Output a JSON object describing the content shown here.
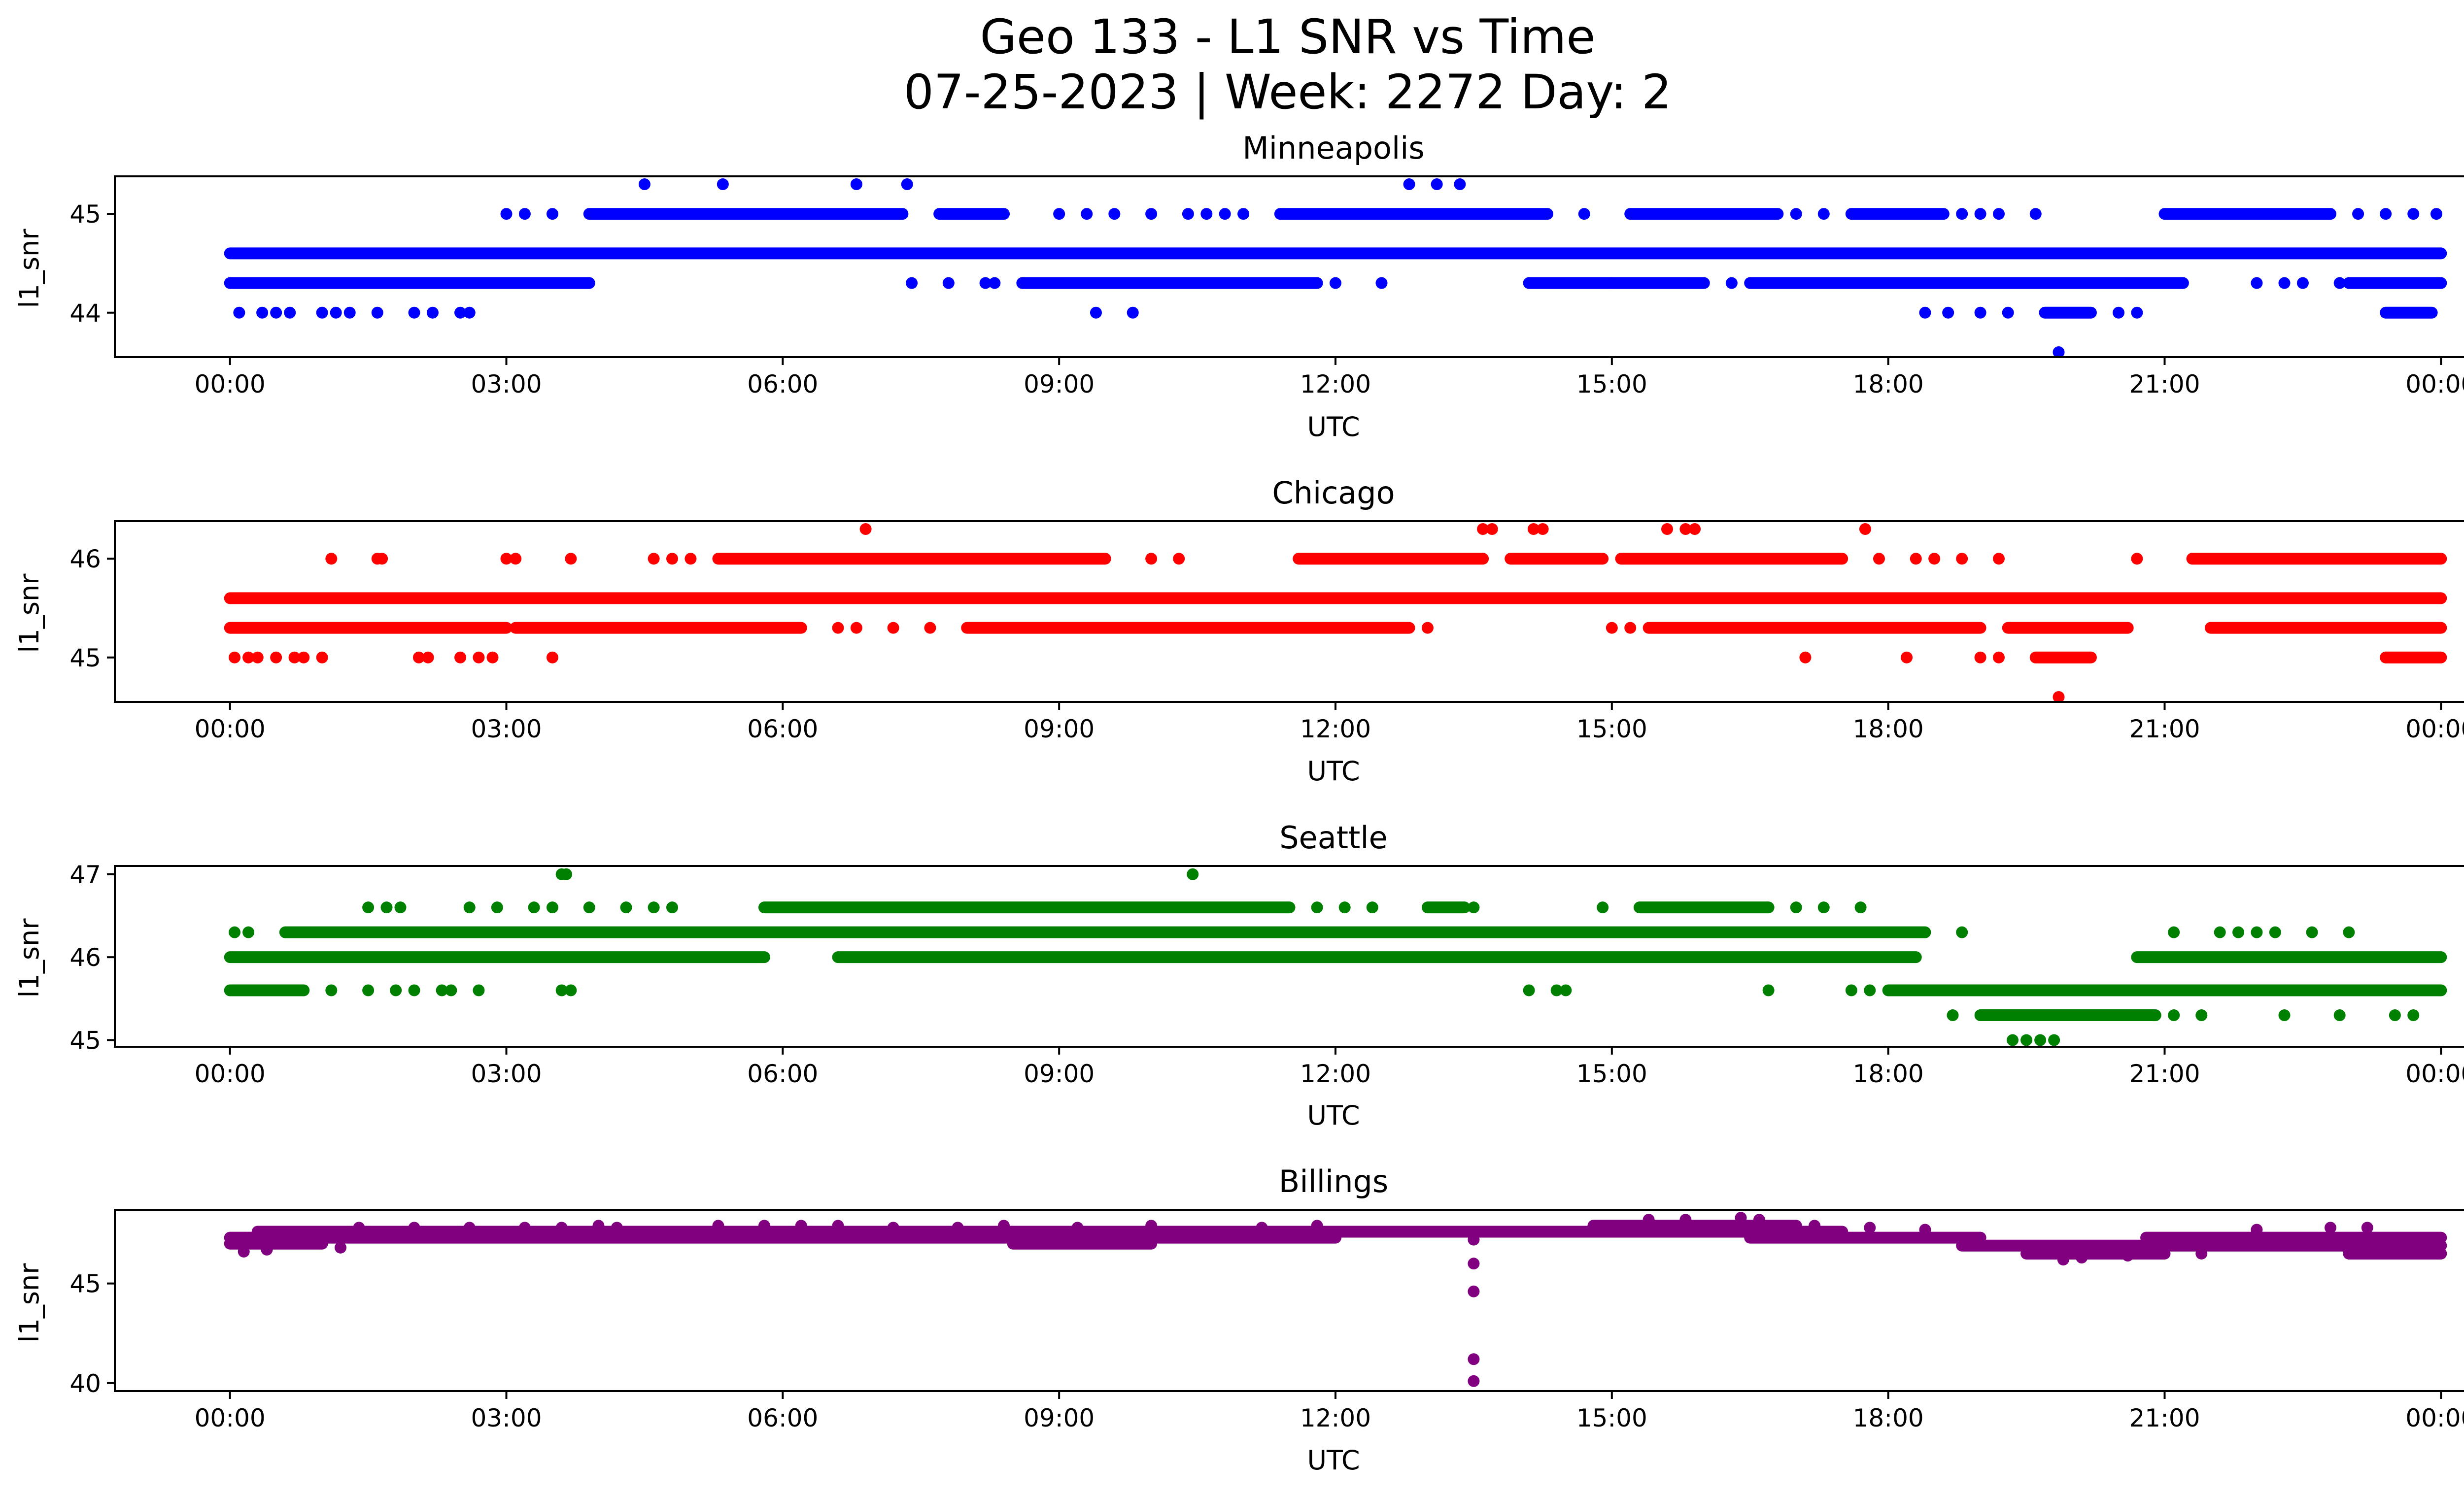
{
  "figure": {
    "title_line1": "Geo 133 - L1 SNR vs Time",
    "title_line2": "07-25-2023 | Week: 2272 Day: 2"
  },
  "chart_data": [
    {
      "type": "scatter",
      "title": "Minneapolis",
      "xlabel": "UTC",
      "ylabel": "l1_snr",
      "color": "#0000ff",
      "x_tick_labels": [
        "00:00",
        "03:00",
        "06:00",
        "09:00",
        "12:00",
        "15:00",
        "18:00",
        "21:00",
        "00:00"
      ],
      "x_range_hours": [
        -1.25,
        25.25
      ],
      "ylim": [
        43.55,
        45.38
      ],
      "y_ticks": [
        44,
        45
      ],
      "levels": [
        {
          "y": 44.6,
          "segments": [
            [
              0,
              24
            ]
          ]
        },
        {
          "y": 44.3,
          "segments": [
            [
              0,
              3.9
            ],
            [
              8.6,
              11.8
            ],
            [
              14.1,
              16.0
            ],
            [
              16.5,
              21.2
            ],
            [
              23.0,
              24
            ]
          ]
        },
        {
          "y": 45.0,
          "segments": [
            [
              3.9,
              7.3
            ],
            [
              7.7,
              8.4
            ],
            [
              11.4,
              14.3
            ],
            [
              15.2,
              16.8
            ],
            [
              17.6,
              18.6
            ],
            [
              21.0,
              22.8
            ]
          ]
        },
        {
          "y": 44.0,
          "segments": [
            [
              19.7,
              20.2
            ],
            [
              23.4,
              23.9
            ]
          ]
        }
      ],
      "points": [
        [
          0.1,
          44.0
        ],
        [
          0.35,
          44.0
        ],
        [
          0.5,
          44.0
        ],
        [
          0.65,
          44.0
        ],
        [
          1.0,
          44.0
        ],
        [
          1.15,
          44.0
        ],
        [
          1.3,
          44.0
        ],
        [
          1.6,
          44.0
        ],
        [
          2.0,
          44.0
        ],
        [
          2.2,
          44.0
        ],
        [
          2.5,
          44.0
        ],
        [
          2.6,
          44.0
        ],
        [
          3.0,
          45.0
        ],
        [
          3.2,
          45.0
        ],
        [
          3.5,
          45.0
        ],
        [
          4.5,
          45.3
        ],
        [
          5.35,
          45.3
        ],
        [
          6.8,
          45.3
        ],
        [
          7.35,
          45.3
        ],
        [
          7.4,
          44.3
        ],
        [
          7.8,
          44.3
        ],
        [
          8.2,
          44.3
        ],
        [
          8.3,
          44.3
        ],
        [
          9.0,
          45.0
        ],
        [
          9.3,
          45.0
        ],
        [
          9.6,
          45.0
        ],
        [
          10.0,
          45.0
        ],
        [
          10.4,
          45.0
        ],
        [
          10.6,
          45.0
        ],
        [
          10.8,
          45.0
        ],
        [
          11.0,
          45.0
        ],
        [
          9.4,
          44.0
        ],
        [
          9.8,
          44.0
        ],
        [
          12.0,
          44.3
        ],
        [
          12.5,
          44.3
        ],
        [
          12.8,
          45.3
        ],
        [
          13.1,
          45.3
        ],
        [
          13.35,
          45.3
        ],
        [
          14.7,
          45.0
        ],
        [
          15.0,
          44.3
        ],
        [
          16.3,
          44.3
        ],
        [
          17.0,
          45.0
        ],
        [
          17.3,
          45.0
        ],
        [
          18.4,
          44.0
        ],
        [
          18.65,
          44.0
        ],
        [
          19.0,
          44.0
        ],
        [
          19.3,
          44.0
        ],
        [
          18.8,
          45.0
        ],
        [
          19.0,
          45.0
        ],
        [
          19.2,
          45.0
        ],
        [
          19.6,
          45.0
        ],
        [
          19.85,
          43.6
        ],
        [
          20.5,
          44.0
        ],
        [
          20.7,
          44.0
        ],
        [
          22.0,
          44.3
        ],
        [
          22.3,
          44.3
        ],
        [
          22.5,
          44.3
        ],
        [
          22.9,
          44.3
        ],
        [
          23.1,
          45.0
        ],
        [
          23.4,
          45.0
        ],
        [
          23.7,
          45.0
        ],
        [
          23.95,
          45.0
        ]
      ]
    },
    {
      "type": "scatter",
      "title": "Chicago",
      "xlabel": "UTC",
      "ylabel": "l1_snr",
      "color": "#ff0000",
      "x_tick_labels": [
        "00:00",
        "03:00",
        "06:00",
        "09:00",
        "12:00",
        "15:00",
        "18:00",
        "21:00",
        "00:00"
      ],
      "x_range_hours": [
        -1.25,
        25.25
      ],
      "ylim": [
        44.55,
        46.38
      ],
      "y_ticks": [
        45,
        46
      ],
      "levels": [
        {
          "y": 45.6,
          "segments": [
            [
              0,
              24
            ]
          ]
        },
        {
          "y": 45.3,
          "segments": [
            [
              0,
              3.0
            ],
            [
              3.1,
              6.2
            ],
            [
              8.0,
              12.8
            ],
            [
              15.4,
              19.0
            ],
            [
              19.3,
              20.6
            ],
            [
              21.5,
              24
            ]
          ]
        },
        {
          "y": 46.0,
          "segments": [
            [
              5.3,
              9.5
            ],
            [
              11.6,
              13.6
            ],
            [
              13.9,
              14.9
            ],
            [
              15.1,
              17.5
            ],
            [
              21.3,
              24
            ]
          ]
        },
        {
          "y": 45.0,
          "segments": [
            [
              19.6,
              20.2
            ],
            [
              23.4,
              24
            ]
          ]
        }
      ],
      "points": [
        [
          0.05,
          45.0
        ],
        [
          0.2,
          45.0
        ],
        [
          0.3,
          45.0
        ],
        [
          0.5,
          45.0
        ],
        [
          0.7,
          45.0
        ],
        [
          0.8,
          45.0
        ],
        [
          1.0,
          45.0
        ],
        [
          2.05,
          45.0
        ],
        [
          2.15,
          45.0
        ],
        [
          2.5,
          45.0
        ],
        [
          2.7,
          45.0
        ],
        [
          2.85,
          45.0
        ],
        [
          3.5,
          45.0
        ],
        [
          1.1,
          46.0
        ],
        [
          1.6,
          46.0
        ],
        [
          1.65,
          46.0
        ],
        [
          3.0,
          46.0
        ],
        [
          3.1,
          46.0
        ],
        [
          3.7,
          46.0
        ],
        [
          4.6,
          46.0
        ],
        [
          4.8,
          46.0
        ],
        [
          5.0,
          46.0
        ],
        [
          6.9,
          46.3
        ],
        [
          10.0,
          46.0
        ],
        [
          10.3,
          46.0
        ],
        [
          6.6,
          45.3
        ],
        [
          6.8,
          45.3
        ],
        [
          7.2,
          45.3
        ],
        [
          7.6,
          45.3
        ],
        [
          13.0,
          45.3
        ],
        [
          13.6,
          46.3
        ],
        [
          13.7,
          46.3
        ],
        [
          14.15,
          46.3
        ],
        [
          14.25,
          46.3
        ],
        [
          15.0,
          45.3
        ],
        [
          15.2,
          45.3
        ],
        [
          15.6,
          46.3
        ],
        [
          15.8,
          46.3
        ],
        [
          15.9,
          46.3
        ],
        [
          17.1,
          45.0
        ],
        [
          17.75,
          46.3
        ],
        [
          18.2,
          45.0
        ],
        [
          17.9,
          46.0
        ],
        [
          18.3,
          46.0
        ],
        [
          18.5,
          46.0
        ],
        [
          18.8,
          46.0
        ],
        [
          19.2,
          46.0
        ],
        [
          19.0,
          45.0
        ],
        [
          19.2,
          45.0
        ],
        [
          19.85,
          44.6
        ],
        [
          20.7,
          46.0
        ]
      ]
    },
    {
      "type": "scatter",
      "title": "Seattle",
      "xlabel": "UTC",
      "ylabel": "l1_snr",
      "color": "#008000",
      "x_tick_labels": [
        "00:00",
        "03:00",
        "06:00",
        "09:00",
        "12:00",
        "15:00",
        "18:00",
        "21:00",
        "00:00"
      ],
      "x_range_hours": [
        -1.25,
        25.25
      ],
      "ylim": [
        44.92,
        47.1
      ],
      "y_ticks": [
        45,
        46,
        47
      ],
      "levels": [
        {
          "y": 46.0,
          "segments": [
            [
              0,
              5.8
            ],
            [
              6.6,
              18.3
            ],
            [
              20.7,
              24
            ]
          ]
        },
        {
          "y": 46.3,
          "segments": [
            [
              0.6,
              18.4
            ]
          ]
        },
        {
          "y": 46.6,
          "segments": [
            [
              5.8,
              11.5
            ],
            [
              13.0,
              13.4
            ],
            [
              15.3,
              16.7
            ]
          ]
        },
        {
          "y": 45.6,
          "segments": [
            [
              0,
              0.8
            ],
            [
              18.0,
              24
            ]
          ]
        },
        {
          "y": 45.3,
          "segments": [
            [
              19.0,
              20.9
            ]
          ]
        }
      ],
      "points": [
        [
          0.05,
          46.3
        ],
        [
          0.2,
          46.3
        ],
        [
          1.1,
          45.6
        ],
        [
          1.5,
          45.6
        ],
        [
          1.8,
          45.6
        ],
        [
          2.0,
          45.6
        ],
        [
          2.3,
          45.6
        ],
        [
          2.4,
          45.6
        ],
        [
          2.7,
          45.6
        ],
        [
          3.6,
          45.6
        ],
        [
          3.7,
          45.6
        ],
        [
          1.5,
          46.6
        ],
        [
          1.7,
          46.6
        ],
        [
          1.85,
          46.6
        ],
        [
          2.6,
          46.6
        ],
        [
          2.9,
          46.6
        ],
        [
          3.3,
          46.6
        ],
        [
          3.5,
          46.6
        ],
        [
          3.6,
          47.0
        ],
        [
          3.65,
          47.0
        ],
        [
          3.9,
          46.6
        ],
        [
          4.3,
          46.6
        ],
        [
          4.6,
          46.6
        ],
        [
          4.8,
          46.6
        ],
        [
          10.45,
          47.0
        ],
        [
          11.8,
          46.6
        ],
        [
          12.1,
          46.6
        ],
        [
          12.4,
          46.6
        ],
        [
          13.5,
          46.6
        ],
        [
          14.1,
          45.6
        ],
        [
          14.4,
          45.6
        ],
        [
          14.5,
          45.6
        ],
        [
          14.9,
          46.6
        ],
        [
          16.7,
          45.6
        ],
        [
          17.0,
          46.6
        ],
        [
          17.3,
          46.6
        ],
        [
          17.7,
          46.6
        ],
        [
          17.6,
          45.6
        ],
        [
          17.8,
          45.6
        ],
        [
          18.7,
          45.3
        ],
        [
          18.8,
          46.3
        ],
        [
          19.35,
          45.0
        ],
        [
          19.5,
          45.0
        ],
        [
          19.65,
          45.0
        ],
        [
          19.8,
          45.0
        ],
        [
          21.1,
          46.3
        ],
        [
          21.6,
          46.3
        ],
        [
          21.8,
          46.3
        ],
        [
          22.0,
          46.3
        ],
        [
          22.2,
          46.3
        ],
        [
          22.6,
          46.3
        ],
        [
          23.0,
          46.3
        ],
        [
          21.1,
          45.3
        ],
        [
          21.4,
          45.3
        ],
        [
          22.3,
          45.3
        ],
        [
          22.9,
          45.3
        ],
        [
          23.5,
          45.3
        ],
        [
          23.7,
          45.3
        ]
      ]
    },
    {
      "type": "scatter",
      "title": "Billings",
      "xlabel": "UTC",
      "ylabel": "l1_snr",
      "color": "#800080",
      "x_tick_labels": [
        "00:00",
        "03:00",
        "06:00",
        "09:00",
        "12:00",
        "15:00",
        "18:00",
        "21:00",
        "00:00"
      ],
      "x_range_hours": [
        -1.25,
        25.25
      ],
      "ylim": [
        39.6,
        48.7
      ],
      "y_ticks": [
        40,
        45
      ],
      "levels": [
        {
          "y": 47.3,
          "segments": [
            [
              0,
              12.0
            ]
          ]
        },
        {
          "y": 47.6,
          "segments": [
            [
              0.3,
              13.4
            ]
          ]
        },
        {
          "y": 47.0,
          "segments": [
            [
              0,
              1.0
            ],
            [
              8.5,
              10.0
            ]
          ]
        },
        {
          "y": 47.6,
          "segments": [
            [
              12.0,
              17.5
            ]
          ]
        },
        {
          "y": 47.9,
          "segments": [
            [
              14.8,
              17.0
            ]
          ]
        },
        {
          "y": 47.3,
          "segments": [
            [
              16.5,
              19.0
            ],
            [
              20.8,
              24
            ]
          ]
        },
        {
          "y": 46.9,
          "segments": [
            [
              18.8,
              24
            ]
          ]
        },
        {
          "y": 46.5,
          "segments": [
            [
              19.5,
              21.0
            ],
            [
              23.0,
              24
            ]
          ]
        }
      ],
      "points": [
        [
          0.15,
          46.6
        ],
        [
          0.4,
          46.7
        ],
        [
          1.2,
          46.8
        ],
        [
          1.4,
          47.8
        ],
        [
          2.0,
          47.8
        ],
        [
          2.6,
          47.8
        ],
        [
          3.2,
          47.8
        ],
        [
          3.6,
          47.8
        ],
        [
          4.0,
          47.9
        ],
        [
          4.2,
          47.8
        ],
        [
          5.3,
          47.9
        ],
        [
          5.8,
          47.9
        ],
        [
          6.2,
          47.9
        ],
        [
          6.6,
          47.9
        ],
        [
          7.2,
          47.8
        ],
        [
          7.9,
          47.8
        ],
        [
          8.4,
          47.9
        ],
        [
          9.2,
          47.8
        ],
        [
          10.0,
          47.9
        ],
        [
          11.2,
          47.8
        ],
        [
          11.8,
          47.9
        ],
        [
          13.5,
          47.2
        ],
        [
          13.5,
          46.0
        ],
        [
          13.5,
          44.6
        ],
        [
          13.5,
          41.2
        ],
        [
          13.5,
          40.1
        ],
        [
          15.4,
          48.2
        ],
        [
          15.8,
          48.2
        ],
        [
          16.4,
          48.3
        ],
        [
          16.6,
          48.2
        ],
        [
          17.2,
          47.9
        ],
        [
          17.8,
          47.8
        ],
        [
          18.4,
          47.7
        ],
        [
          19.9,
          46.2
        ],
        [
          20.1,
          46.3
        ],
        [
          20.6,
          46.4
        ],
        [
          21.4,
          46.5
        ],
        [
          22.0,
          47.7
        ],
        [
          22.8,
          47.8
        ],
        [
          23.2,
          47.8
        ],
        [
          23.6,
          46.6
        ],
        [
          23.9,
          46.6
        ]
      ]
    }
  ]
}
